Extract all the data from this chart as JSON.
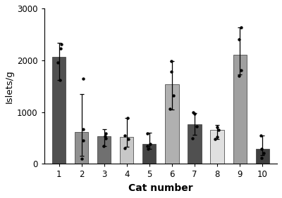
{
  "categories": [
    1,
    2,
    3,
    4,
    5,
    6,
    7,
    8,
    9,
    10
  ],
  "bar_means": [
    2060,
    620,
    540,
    520,
    390,
    1530,
    760,
    650,
    2100,
    290
  ],
  "bar_colors": [
    "#505050",
    "#909090",
    "#707070",
    "#c8c8c8",
    "#454545",
    "#b0b0b0",
    "#505050",
    "#e0e0e0",
    "#a0a0a0",
    "#404040"
  ],
  "error_low": [
    440,
    470,
    190,
    195,
    95,
    480,
    195,
    175,
    380,
    115
  ],
  "error_high": [
    280,
    730,
    125,
    360,
    215,
    450,
    215,
    100,
    530,
    260
  ],
  "data_points": [
    [
      1620,
      1950,
      2230,
      2310
    ],
    [
      100,
      450,
      670,
      1640
    ],
    [
      350,
      490,
      540,
      590
    ],
    [
      310,
      480,
      550,
      880
    ],
    [
      290,
      350,
      390,
      590
    ],
    [
      1060,
      1320,
      1780,
      1980
    ],
    [
      500,
      730,
      970,
      1000
    ],
    [
      480,
      520,
      660,
      710
    ],
    [
      1700,
      1810,
      2400,
      2630
    ],
    [
      110,
      215,
      290,
      545
    ]
  ],
  "ylabel": "Islets/g",
  "xlabel": "Cat number",
  "ylim": [
    0,
    3000
  ],
  "yticks": [
    0,
    1000,
    2000,
    3000
  ],
  "bar_width": 0.6,
  "figsize": [
    4.0,
    2.82
  ],
  "dpi": 100
}
